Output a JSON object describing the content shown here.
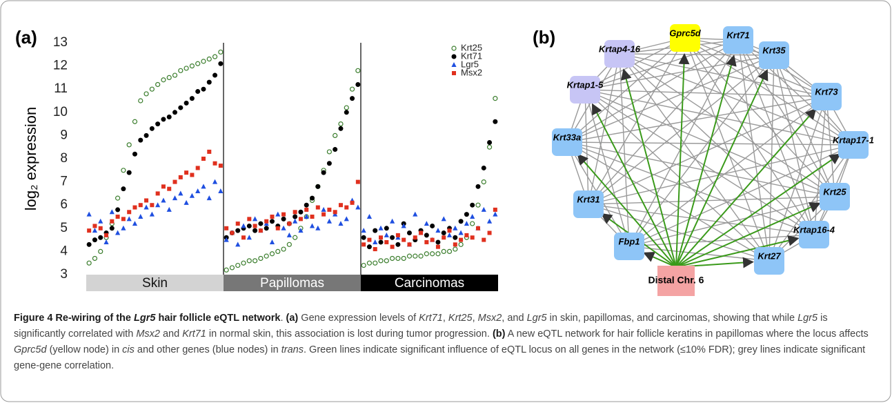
{
  "panel_labels": [
    "(a)",
    "(b)"
  ],
  "chart_data": {
    "type": "scatter",
    "y_label": "log₂ expression",
    "ylim": [
      3,
      13
    ],
    "yticks": [
      3,
      4,
      5,
      6,
      7,
      8,
      9,
      10,
      11,
      12,
      13
    ],
    "groups": [
      "Skin",
      "Papillomas",
      "Carcinomas"
    ],
    "group_colors": [
      "#d3d3d3",
      "#777777",
      "#000000"
    ],
    "series": [
      {
        "name": "Krt25",
        "color": "#3a7d2c",
        "marker": "open-circle",
        "values": [
          3.5,
          3.7,
          4.0,
          4.6,
          5.2,
          6.3,
          7.5,
          8.6,
          9.6,
          10.5,
          10.8,
          11.0,
          11.2,
          11.4,
          11.5,
          11.6,
          11.8,
          11.9,
          12.0,
          12.1,
          12.2,
          12.3,
          12.4,
          12.6,
          3.2,
          3.3,
          3.4,
          3.5,
          3.6,
          3.6,
          3.7,
          3.8,
          3.9,
          4.0,
          4.1,
          4.3,
          4.6,
          5.0,
          5.5,
          6.2,
          6.8,
          7.5,
          8.3,
          9.0,
          9.5,
          10.2,
          11.0,
          11.8,
          3.4,
          3.5,
          3.5,
          3.6,
          3.6,
          3.7,
          3.7,
          3.7,
          3.8,
          3.8,
          3.8,
          3.9,
          3.9,
          3.9,
          4.0,
          4.0,
          4.1,
          4.3,
          4.6,
          5.2,
          6.0,
          7.0,
          8.5,
          10.6
        ]
      },
      {
        "name": "Krt71",
        "color": "#000000",
        "marker": "circle",
        "values": [
          4.3,
          4.5,
          4.6,
          4.8,
          5.0,
          5.8,
          6.7,
          7.4,
          8.2,
          8.8,
          9.0,
          9.3,
          9.5,
          9.7,
          9.8,
          10.0,
          10.2,
          10.4,
          10.6,
          10.9,
          11.0,
          11.3,
          11.6,
          12.1,
          4.6,
          4.8,
          4.9,
          5.0,
          5.1,
          4.9,
          5.2,
          5.0,
          5.3,
          5.1,
          5.4,
          5.2,
          5.5,
          5.7,
          6.0,
          6.3,
          6.8,
          7.4,
          7.8,
          8.4,
          9.3,
          10.0,
          10.6,
          11.2,
          4.6,
          4.2,
          4.9,
          4.4,
          5.0,
          4.6,
          4.3,
          5.2,
          4.8,
          4.5,
          4.9,
          4.7,
          5.1,
          4.4,
          4.8,
          5.0,
          4.6,
          5.3,
          5.6,
          6.0,
          6.8,
          7.6,
          8.7,
          9.6
        ]
      },
      {
        "name": "Lgr5",
        "color": "#1f4fe0",
        "marker": "triangle",
        "values": [
          5.6,
          4.9,
          5.3,
          4.4,
          5.7,
          4.8,
          5.0,
          5.4,
          5.2,
          5.5,
          5.9,
          5.6,
          6.0,
          6.2,
          5.8,
          6.3,
          6.5,
          6.1,
          6.4,
          6.6,
          6.8,
          6.3,
          7.0,
          6.6,
          4.5,
          4.8,
          4.3,
          5.1,
          4.6,
          5.4,
          4.9,
          5.2,
          4.4,
          5.6,
          5.0,
          4.7,
          5.3,
          4.9,
          5.5,
          5.1,
          5.0,
          5.8,
          5.3,
          5.6,
          5.2,
          5.4,
          6.2,
          5.9,
          4.9,
          5.5,
          4.4,
          5.0,
          4.7,
          5.3,
          4.6,
          5.1,
          4.3,
          5.6,
          4.8,
          5.2,
          4.5,
          4.9,
          5.4,
          4.7,
          5.0,
          4.8,
          5.2,
          5.5,
          5.0,
          5.8,
          5.3,
          5.6
        ]
      },
      {
        "name": "Msx2",
        "color": "#e0301e",
        "marker": "square",
        "values": [
          4.9,
          5.1,
          5.0,
          4.7,
          5.3,
          5.5,
          5.4,
          5.7,
          5.9,
          6.0,
          6.2,
          6.0,
          6.5,
          6.8,
          6.7,
          7.0,
          7.2,
          7.4,
          7.3,
          7.6,
          8.0,
          8.3,
          7.8,
          7.7,
          5.0,
          4.8,
          5.2,
          4.6,
          5.4,
          5.1,
          4.9,
          5.3,
          5.5,
          5.0,
          5.6,
          5.2,
          5.7,
          5.4,
          5.8,
          5.5,
          5.9,
          5.6,
          5.8,
          5.7,
          6.0,
          5.9,
          6.1,
          7.0,
          4.3,
          4.5,
          4.1,
          4.6,
          4.4,
          4.2,
          4.7,
          4.5,
          4.3,
          4.6,
          4.8,
          4.4,
          4.5,
          4.2,
          4.6,
          4.9,
          4.3,
          4.5,
          4.7,
          4.6,
          5.0,
          4.5,
          4.8,
          5.8
        ]
      }
    ]
  },
  "network": {
    "source": {
      "label": "Distal Chr. 6",
      "color": "#f4a3a3"
    },
    "nodes": [
      {
        "label": "Gprc5d",
        "color": "#ffff00"
      },
      {
        "label": "Krt71",
        "color": "#8ec5f7"
      },
      {
        "label": "Krt35",
        "color": "#8ec5f7"
      },
      {
        "label": "Krt73",
        "color": "#8ec5f7"
      },
      {
        "label": "Krtap17-1",
        "color": "#8ec5f7"
      },
      {
        "label": "Krt25",
        "color": "#8ec5f7"
      },
      {
        "label": "Krtap16-4",
        "color": "#8ec5f7"
      },
      {
        "label": "Krt27",
        "color": "#8ec5f7"
      },
      {
        "label": "Fbp1",
        "color": "#8ec5f7"
      },
      {
        "label": "Krt31",
        "color": "#8ec5f7"
      },
      {
        "label": "Krt33a",
        "color": "#8ec5f7"
      },
      {
        "label": "Krtap1-5",
        "color": "#c7c5f5"
      },
      {
        "label": "Krtap4-16",
        "color": "#c7c5f5"
      }
    ],
    "cis_color": "#3a9a1a",
    "trans_color": "#999999"
  },
  "caption": {
    "parts": [
      "Figure 4 Re-wiring of the ",
      "Lgr5",
      " hair follicle eQTL network",
      ". ",
      "(a)",
      " Gene expression levels of ",
      "Krt71",
      ", ",
      "Krt25",
      ", ",
      "Msx2",
      ", and ",
      "Lgr5",
      " in skin, papillomas, and carcinomas, showing that while ",
      "Lgr5",
      " is significantly correlated with ",
      "Msx2",
      " and ",
      "Krt71",
      " in normal skin, this association is lost during tumor progression. ",
      "(b)",
      " A new eQTL network for hair follicle keratins in papillomas where the locus affects ",
      "Gprc5d",
      " (yellow node) in ",
      "cis",
      " and other genes (blue nodes) in ",
      "trans",
      ". Green lines indicate significant influence of eQTL locus on all genes in the network (≤10% FDR); grey lines indicate significant gene-gene correlation."
    ]
  }
}
